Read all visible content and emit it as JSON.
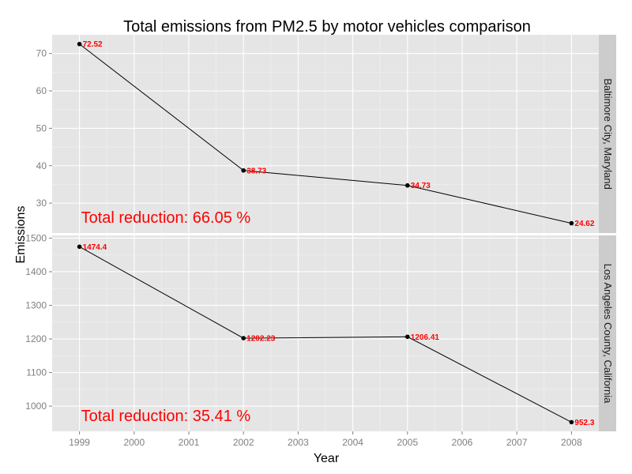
{
  "chart_data": {
    "type": "line",
    "title": "Total emissions from PM2.5 by motor vehicles comparison",
    "xlabel": "Year",
    "ylabel": "Emissions",
    "x_ticks": [
      1999,
      2000,
      2001,
      2002,
      2003,
      2004,
      2005,
      2006,
      2007,
      2008
    ],
    "xlim": [
      1998.5,
      2008.5
    ],
    "grid": true,
    "facets": [
      {
        "strip_label": "Baltimore City, Maryland",
        "x": [
          1999,
          2002,
          2005,
          2008
        ],
        "y": [
          72.52,
          38.73,
          34.73,
          24.62
        ],
        "point_labels": [
          "72.52",
          "38.73",
          "34.73",
          "24.62"
        ],
        "y_ticks": [
          30,
          40,
          50,
          60,
          70
        ],
        "ylim": [
          22,
          75
        ],
        "annotation": "Total reduction: 66.05 %"
      },
      {
        "strip_label": "Los Angeles County, California",
        "x": [
          1999,
          2002,
          2005,
          2008
        ],
        "y": [
          1474.4,
          1202.23,
          1206.41,
          952.3
        ],
        "point_labels": [
          "1474.4",
          "1202.23",
          "1206.41",
          "952.3"
        ],
        "y_ticks": [
          1000,
          1100,
          1200,
          1300,
          1400,
          1500
        ],
        "ylim": [
          925,
          1508
        ],
        "annotation": "Total reduction: 35.41 %"
      }
    ]
  }
}
